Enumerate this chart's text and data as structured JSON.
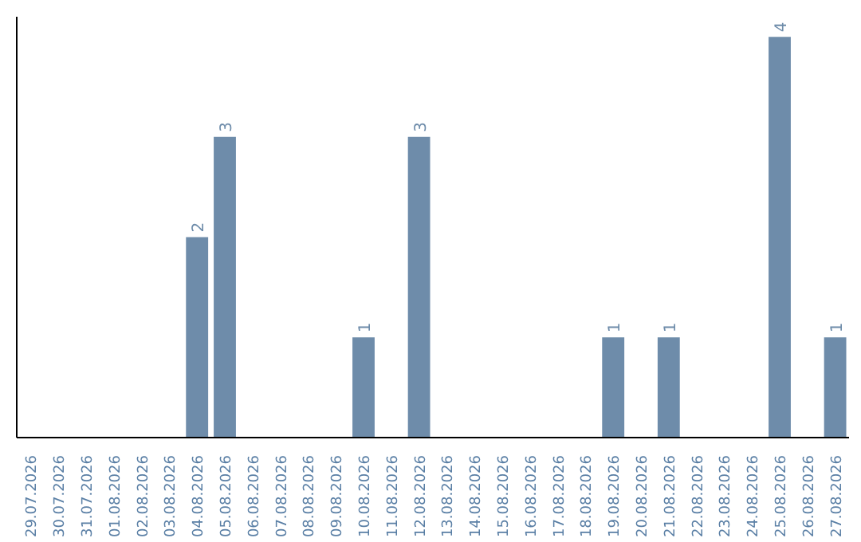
{
  "chart_data": {
    "type": "bar",
    "categories": [
      "29.07.2026",
      "30.07.2026",
      "31.07.2026",
      "01.08.2026",
      "02.08.2026",
      "03.08.2026",
      "04.08.2026",
      "05.08.2026",
      "06.08.2026",
      "07.08.2026",
      "08.08.2026",
      "09.08.2026",
      "10.08.2026",
      "11.08.2026",
      "12.08.2026",
      "13.08.2026",
      "14.08.2026",
      "15.08.2026",
      "16.08.2026",
      "17.08.2026",
      "18.08.2026",
      "19.08.2026",
      "20.08.2026",
      "21.08.2026",
      "22.08.2026",
      "23.08.2026",
      "24.08.2026",
      "25.08.2026",
      "26.08.2026",
      "27.08.2026"
    ],
    "values": [
      0,
      0,
      0,
      0,
      0,
      0,
      2,
      3,
      0,
      0,
      0,
      0,
      1,
      0,
      3,
      0,
      0,
      0,
      0,
      0,
      0,
      1,
      0,
      1,
      0,
      0,
      0,
      4,
      0,
      1
    ],
    "value_labels": [
      null,
      null,
      null,
      null,
      null,
      null,
      "2",
      "3",
      null,
      null,
      null,
      null,
      "1",
      null,
      "3",
      null,
      null,
      null,
      null,
      null,
      null,
      "1",
      null,
      "1",
      null,
      null,
      null,
      "4",
      null,
      "1"
    ],
    "color": "#6e8caa",
    "ylim": [
      0,
      4.2
    ],
    "grid": false
  }
}
